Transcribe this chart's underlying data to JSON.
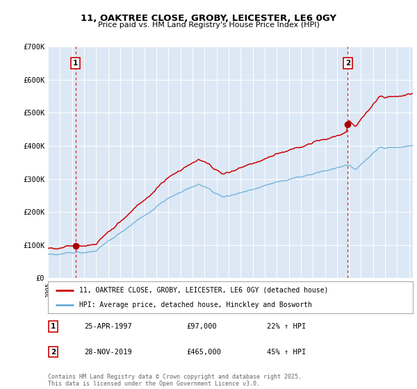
{
  "title_line1": "11, OAKTREE CLOSE, GROBY, LEICESTER, LE6 0GY",
  "title_line2": "Price paid vs. HM Land Registry's House Price Index (HPI)",
  "background_color": "#ffffff",
  "plot_bg_color": "#dce8f5",
  "grid_color": "#ffffff",
  "sale1_date_label": "25-APR-1997",
  "sale1_price": 97000,
  "sale1_hpi_pct": "22% ↑ HPI",
  "sale2_date_label": "28-NOV-2019",
  "sale2_price": 465000,
  "sale2_hpi_pct": "45% ↑ HPI",
  "legend_line1": "11, OAKTREE CLOSE, GROBY, LEICESTER, LE6 0GY (detached house)",
  "legend_line2": "HPI: Average price, detached house, Hinckley and Bosworth",
  "footer": "Contains HM Land Registry data © Crown copyright and database right 2025.\nThis data is licensed under the Open Government Licence v3.0.",
  "ytick_labels": [
    "£0",
    "£100K",
    "£200K",
    "£300K",
    "£400K",
    "£500K",
    "£600K",
    "£700K"
  ],
  "ytick_values": [
    0,
    100000,
    200000,
    300000,
    400000,
    500000,
    600000,
    700000
  ],
  "hpi_line_color": "#6aaed6",
  "property_line_color": "#cc0000",
  "vline_color": "#cc0000",
  "marker_color": "#aa0000",
  "badge_edgecolor": "#cc0000",
  "sale1_year_f": 1997.29,
  "sale2_year_f": 2019.9,
  "xmin": 1995,
  "xmax": 2025.3,
  "ymin": 0,
  "ymax": 700000
}
